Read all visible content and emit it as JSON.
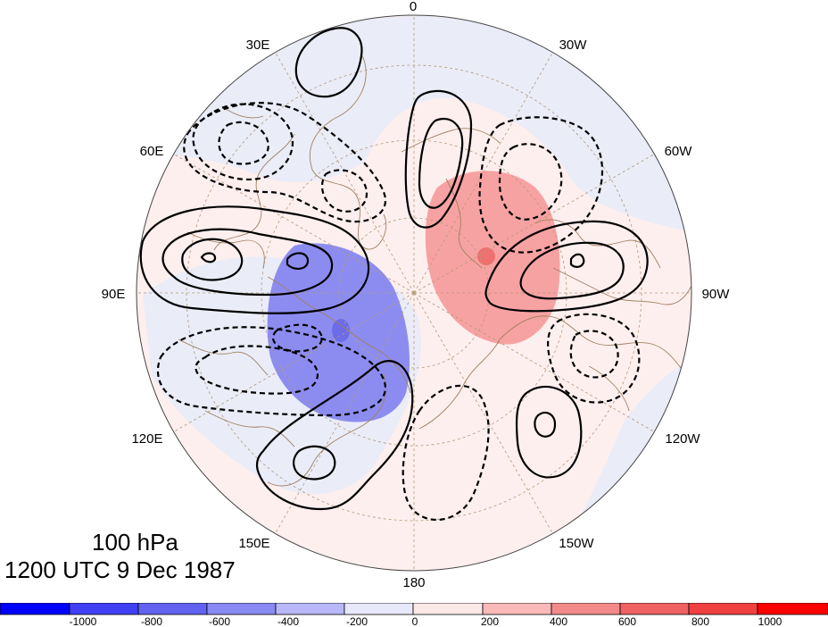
{
  "title": {
    "level": "100 hPa",
    "time": "1200 UTC 9 Dec 1987"
  },
  "longitude_labels": [
    "0",
    "30W",
    "60W",
    "90W",
    "120W",
    "150W",
    "180",
    "150E",
    "120E",
    "90E",
    "60E",
    "30E"
  ],
  "colorbar": {
    "tick_labels": [
      "-1000",
      "-800",
      "-600",
      "-400",
      "-200",
      "0",
      "200",
      "400",
      "600",
      "800",
      "1000"
    ],
    "colors": [
      "#0000ff",
      "#4040f4",
      "#6262f0",
      "#8989f4",
      "#b8b8f8",
      "#e8e8fb",
      "#fde8e8",
      "#f9b9b9",
      "#f38a8a",
      "#ef6262",
      "#f04040",
      "#ff0000"
    ]
  },
  "map_colors": {
    "ocean_neutral_blue": "#eaecf8",
    "ocean_neutral_pink": "#fdefee",
    "blue_anomaly": "#8c8cf0",
    "blue_core": "#6c6ce8",
    "red_anomaly": "#f7a2a2",
    "red_core": "#ef7070",
    "coast": "#a08060",
    "grid": "#b49a78",
    "contour": "#000000"
  }
}
